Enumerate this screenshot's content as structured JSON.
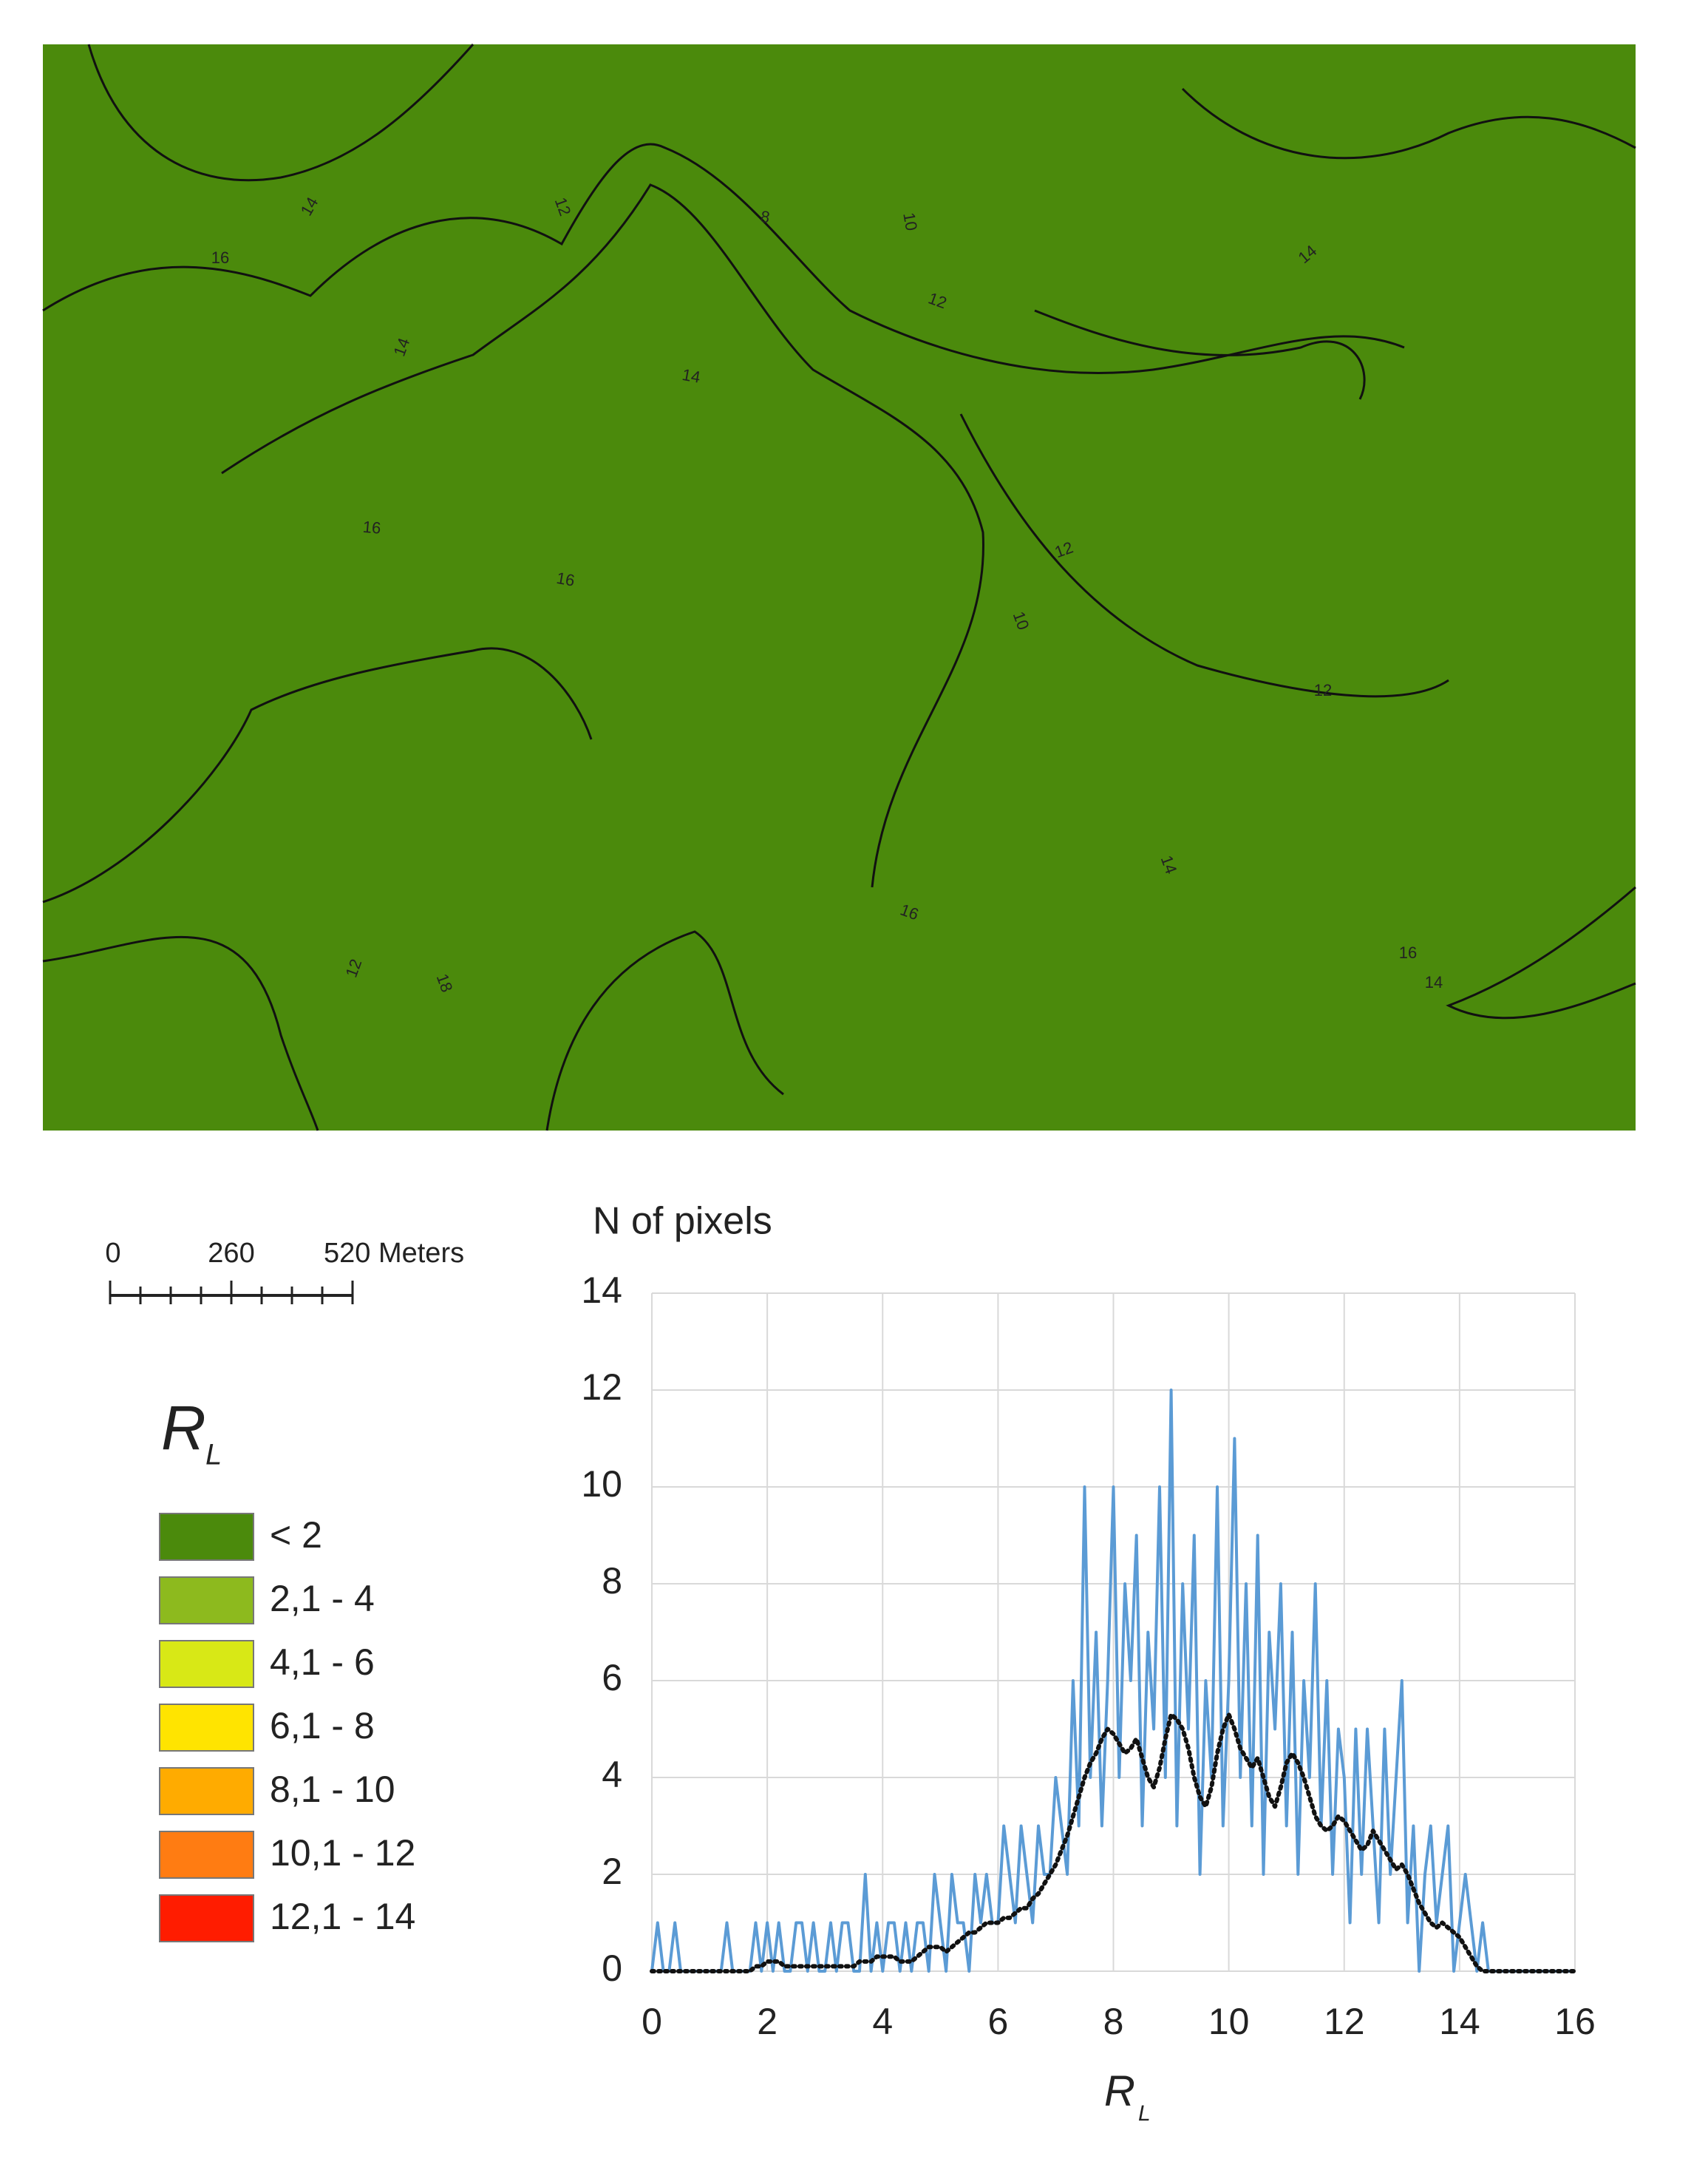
{
  "map": {
    "contour_labels": [
      "16",
      "14",
      "12",
      "10",
      "8",
      "12",
      "14",
      "16",
      "16",
      "14",
      "12",
      "10",
      "12",
      "14",
      "16",
      "18",
      "14",
      "16",
      "12",
      "14"
    ]
  },
  "scale_bar": {
    "labels": [
      "0",
      "260",
      "520 Meters"
    ]
  },
  "legend": {
    "title": "R",
    "title_sub": "L",
    "items": [
      {
        "label": "< 2",
        "color": "#4b8a0c"
      },
      {
        "label": "2,1 - 4",
        "color": "#8dba1e"
      },
      {
        "label": "4,1 - 6",
        "color": "#d8e816"
      },
      {
        "label": "6,1 - 8",
        "color": "#ffe400"
      },
      {
        "label": "8,1 - 10",
        "color": "#ffab00"
      },
      {
        "label": "10,1 - 12",
        "color": "#ff7c12"
      },
      {
        "label": "12,1 - 14",
        "color": "#ff1c00"
      }
    ]
  },
  "chart_data": {
    "type": "line",
    "y_axis_label": "N of pixels",
    "x_label": "R",
    "x_label_sub": "L",
    "xlim": [
      0,
      16
    ],
    "xticks": [
      0,
      2,
      4,
      6,
      8,
      10,
      12,
      14,
      16
    ],
    "ylim": [
      0,
      14
    ],
    "yticks": [
      0,
      2,
      4,
      6,
      8,
      10,
      12,
      14
    ],
    "grid": true,
    "x": [
      0,
      0.1,
      0.2,
      0.3,
      0.4,
      0.5,
      0.6,
      0.7,
      0.8,
      0.9,
      1,
      1.1,
      1.2,
      1.3,
      1.4,
      1.5,
      1.6,
      1.7,
      1.8,
      1.9,
      2,
      2.1,
      2.2,
      2.3,
      2.4,
      2.5,
      2.6,
      2.7,
      2.8,
      2.9,
      3,
      3.1,
      3.2,
      3.3,
      3.4,
      3.5,
      3.6,
      3.7,
      3.8,
      3.9,
      4,
      4.1,
      4.2,
      4.3,
      4.4,
      4.5,
      4.6,
      4.7,
      4.8,
      4.9,
      5,
      5.1,
      5.2,
      5.3,
      5.4,
      5.5,
      5.6,
      5.7,
      5.8,
      5.9,
      6,
      6.1,
      6.2,
      6.3,
      6.4,
      6.5,
      6.6,
      6.7,
      6.8,
      6.9,
      7,
      7.1,
      7.2,
      7.3,
      7.4,
      7.5,
      7.6,
      7.7,
      7.8,
      7.9,
      8,
      8.1,
      8.2,
      8.3,
      8.4,
      8.5,
      8.6,
      8.7,
      8.8,
      8.9,
      9,
      9.1,
      9.2,
      9.3,
      9.4,
      9.5,
      9.6,
      9.7,
      9.8,
      9.9,
      10,
      10.1,
      10.2,
      10.3,
      10.4,
      10.5,
      10.6,
      10.7,
      10.8,
      10.9,
      11,
      11.1,
      11.2,
      11.3,
      11.4,
      11.5,
      11.6,
      11.7,
      11.8,
      11.9,
      12,
      12.1,
      12.2,
      12.3,
      12.4,
      12.5,
      12.6,
      12.7,
      12.8,
      12.9,
      13,
      13.1,
      13.2,
      13.3,
      13.4,
      13.5,
      13.6,
      13.7,
      13.8,
      13.9,
      14,
      14.1,
      14.2,
      14.3,
      14.4,
      14.5,
      14.6,
      14.7,
      14.8,
      14.9,
      15,
      15.1,
      15.2,
      15.3,
      15.4,
      15.5,
      15.6,
      15.7,
      15.8,
      15.9,
      16
    ],
    "series": [
      {
        "color": "#5b9bd5",
        "style": "solid",
        "values": [
          0,
          1,
          0,
          0,
          1,
          0,
          0,
          0,
          0,
          0,
          0,
          0,
          0,
          1,
          0,
          0,
          0,
          0,
          1,
          0,
          1,
          0,
          1,
          0,
          0,
          1,
          1,
          0,
          1,
          0,
          0,
          1,
          0,
          1,
          1,
          0,
          0,
          2,
          0,
          1,
          0,
          1,
          1,
          0,
          1,
          0,
          1,
          1,
          0,
          2,
          1,
          0,
          2,
          1,
          1,
          0,
          2,
          1,
          2,
          1,
          1,
          3,
          2,
          1,
          3,
          2,
          1,
          3,
          2,
          2,
          4,
          3,
          2,
          6,
          3,
          10,
          4,
          7,
          3,
          6,
          10,
          4,
          8,
          6,
          9,
          3,
          7,
          5,
          10,
          4,
          12,
          3,
          8,
          5,
          9,
          2,
          6,
          4,
          10,
          3,
          6,
          11,
          4,
          8,
          3,
          9,
          2,
          7,
          5,
          8,
          3,
          7,
          2,
          6,
          4,
          8,
          3,
          6,
          2,
          5,
          4,
          1,
          5,
          2,
          5,
          3,
          1,
          5,
          2,
          4,
          6,
          1,
          3,
          0,
          2,
          3,
          1,
          2,
          3,
          0,
          1,
          2,
          1,
          0,
          1,
          0,
          0,
          0,
          0,
          0,
          0,
          0,
          0,
          0,
          0,
          0,
          0,
          0,
          0,
          0,
          0
        ]
      },
      {
        "color": "#111111",
        "style": "dotted",
        "values": [
          0,
          0,
          0,
          0,
          0,
          0,
          0,
          0,
          0,
          0,
          0,
          0,
          0,
          0,
          0,
          0,
          0,
          0,
          0.1,
          0.1,
          0.2,
          0.2,
          0.2,
          0.1,
          0.1,
          0.1,
          0.1,
          0.1,
          0.1,
          0.1,
          0.1,
          0.1,
          0.1,
          0.1,
          0.1,
          0.1,
          0.2,
          0.2,
          0.2,
          0.3,
          0.3,
          0.3,
          0.3,
          0.2,
          0.2,
          0.2,
          0.3,
          0.4,
          0.5,
          0.5,
          0.5,
          0.4,
          0.5,
          0.6,
          0.7,
          0.8,
          0.8,
          0.9,
          1,
          1,
          1,
          1.1,
          1.1,
          1.2,
          1.3,
          1.3,
          1.5,
          1.6,
          1.8,
          2,
          2.2,
          2.5,
          2.8,
          3.2,
          3.6,
          4,
          4.3,
          4.5,
          4.8,
          5,
          4.9,
          4.7,
          4.5,
          4.6,
          4.8,
          4.4,
          4,
          3.8,
          4.2,
          4.8,
          5.3,
          5.2,
          5,
          4.6,
          4,
          3.6,
          3.4,
          3.8,
          4.5,
          5,
          5.3,
          5,
          4.6,
          4.4,
          4.2,
          4.4,
          4,
          3.6,
          3.4,
          3.8,
          4.3,
          4.5,
          4.3,
          4,
          3.6,
          3.2,
          3,
          2.9,
          3,
          3.2,
          3.1,
          2.9,
          2.7,
          2.5,
          2.6,
          2.9,
          2.7,
          2.5,
          2.3,
          2.1,
          2.2,
          2,
          1.7,
          1.4,
          1.2,
          1,
          0.9,
          1,
          0.9,
          0.8,
          0.7,
          0.5,
          0.3,
          0.1,
          0,
          0,
          0,
          0,
          0,
          0,
          0,
          0,
          0,
          0,
          0,
          0,
          0,
          0,
          0,
          0,
          0
        ]
      }
    ]
  }
}
